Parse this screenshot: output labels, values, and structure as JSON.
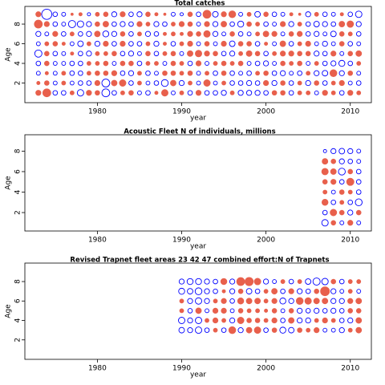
{
  "chart_data": [
    {
      "type": "bubble",
      "title": "Total catches",
      "xlabel": "year",
      "ylabel": "Age",
      "x": [
        1973,
        1974,
        1975,
        1976,
        1977,
        1978,
        1979,
        1980,
        1981,
        1982,
        1983,
        1984,
        1985,
        1986,
        1987,
        1988,
        1989,
        1990,
        1991,
        1992,
        1993,
        1994,
        1995,
        1996,
        1997,
        1998,
        1999,
        2000,
        2001,
        2002,
        2003,
        2004,
        2005,
        2006,
        2007,
        2008,
        2009,
        2010,
        2011
      ],
      "y": [
        1,
        2,
        3,
        4,
        5,
        6,
        7,
        8,
        9
      ],
      "values": [
        [
          0.5,
          1.2,
          -0.4,
          -0.4,
          0.3,
          -0.8,
          0.5,
          0.4,
          -1.2,
          -0.4,
          0.3,
          0.4,
          -0.3,
          -0.4,
          0.2,
          0.8,
          -0.3,
          0.3,
          -0.4,
          0.5,
          -0.4,
          -0.4,
          -0.5,
          0.3,
          -0.5,
          -0.5,
          -0.5,
          -0.4,
          0.4,
          0.4,
          -0.4,
          0.3,
          0.3,
          -0.3,
          0.5,
          0.3,
          -0.4,
          0.5,
          0.3
        ],
        [
          0.2,
          0.4,
          -0.3,
          0.3,
          -0.3,
          -0.4,
          -0.4,
          0.5,
          -1.2,
          0.6,
          0.8,
          -0.4,
          0.3,
          -0.3,
          -0.4,
          -0.9,
          0.6,
          -0.5,
          0.3,
          -0.3,
          0.8,
          -0.3,
          0.3,
          -0.4,
          -0.4,
          -0.5,
          -0.4,
          0.5,
          -0.5,
          0.4,
          -0.4,
          0.3,
          -0.5,
          0.4,
          -0.4,
          0.3,
          0.5,
          -0.3,
          -0.4
        ],
        [
          -0.3,
          0.2,
          -0.3,
          0.3,
          -0.4,
          -0.4,
          0.3,
          0.4,
          0.4,
          0.5,
          -0.4,
          -0.5,
          0.3,
          -0.4,
          -0.3,
          0.4,
          0.4,
          0.3,
          0.4,
          -0.3,
          0.3,
          -0.4,
          0.4,
          -0.4,
          -0.3,
          -0.4,
          0.3,
          0.4,
          -0.4,
          -0.5,
          -0.3,
          -0.4,
          0.3,
          -0.5,
          -0.6,
          0.9,
          -0.5,
          0.4,
          -0.3
        ],
        [
          -0.4,
          0.4,
          -0.3,
          -0.3,
          -0.4,
          -0.4,
          0.3,
          0.3,
          0.4,
          -0.3,
          0.4,
          0.4,
          -0.4,
          0.3,
          0.3,
          -0.3,
          0.4,
          0.3,
          -0.4,
          0.5,
          -0.3,
          0.3,
          0.4,
          0.3,
          0.4,
          -0.3,
          -0.4,
          -0.5,
          -0.3,
          0.4,
          0.3,
          0.4,
          -0.3,
          0.3,
          -0.4,
          -0.5,
          -0.7,
          -0.4,
          0.3
        ],
        [
          -1,
          0.4,
          -0.4,
          -0.3,
          0.2,
          -0.4,
          -0.5,
          0.3,
          0.3,
          0.4,
          -0.4,
          -0.5,
          -0.3,
          0.4,
          -0.4,
          0.3,
          0.4,
          -0.3,
          0.6,
          0.8,
          0.5,
          0.4,
          -0.4,
          -0.5,
          0.3,
          0.6,
          0.4,
          -0.4,
          0.3,
          0.5,
          0.5,
          0.4,
          0.4,
          -0.5,
          -0.4,
          0.5,
          -0.3,
          0.4,
          0.6
        ],
        [
          -0.3,
          0.3,
          0.4,
          0.2,
          -0.3,
          -0.6,
          0.3,
          -0.5,
          0.5,
          -0.4,
          0.5,
          -0.4,
          -0.4,
          0.3,
          -0.5,
          0.2,
          -0.4,
          0.3,
          0.5,
          -0.3,
          0.4,
          -0.3,
          0.5,
          -0.6,
          0.4,
          0.4,
          -0.4,
          0.2,
          -0.3,
          0.6,
          -0.4,
          0.3,
          0.5,
          -0.3,
          -0.5,
          -0.3,
          0.4,
          -0.4,
          -0.3
        ],
        [
          -0.5,
          -0.3,
          0.5,
          -0.4,
          0.3,
          -0.4,
          -0.5,
          0.6,
          -0.7,
          -0.5,
          0.4,
          -0.4,
          0.3,
          -0.5,
          -0.4,
          0.2,
          0.3,
          0.2,
          0.5,
          0.4,
          0.8,
          -0.5,
          -0.3,
          0.4,
          -0.4,
          -0.3,
          0.3,
          0.6,
          0.5,
          -0.3,
          0.4,
          0.5,
          -0.4,
          -0.5,
          -0.3,
          -0.6,
          0.4,
          0.3,
          -0.4
        ],
        [
          1.2,
          0.5,
          -0.4,
          -0.3,
          -1,
          -0.8,
          -0.5,
          0.4,
          0.6,
          -0.4,
          -0.5,
          -0.4,
          0.5,
          0.3,
          -0.5,
          -0.4,
          0.3,
          0.5,
          0.4,
          -0.3,
          0.5,
          -0.5,
          0.6,
          -0.4,
          -0.7,
          0.4,
          0.3,
          -0.4,
          -0.3,
          0.5,
          -0.5,
          0.3,
          -0.4,
          -0.6,
          -0.5,
          -0.4,
          0.6,
          0.8,
          -0.5
        ],
        [
          0.5,
          -2,
          -0.4,
          -0.3,
          0.1,
          0.2,
          -0.2,
          0.3,
          0.4,
          -0.5,
          0.5,
          -0.4,
          -0.5,
          0.4,
          0.2,
          0.1,
          -0.3,
          -0.2,
          0.4,
          -0.4,
          1.2,
          -0.6,
          0.5,
          0.9,
          -0.3,
          0.3,
          -0.6,
          0.4,
          -0.4,
          -0.3,
          0.2,
          0.1,
          -0.5,
          0.3,
          -0.4,
          -0.3,
          0.2,
          -0.4,
          -0.8
        ]
      ],
      "xlim": [
        1971.4,
        2012.5
      ],
      "ylim": [
        0,
        9.8
      ],
      "xticks": [
        1980,
        1990,
        2000,
        2010
      ],
      "yticks": [
        2,
        4,
        6,
        8
      ],
      "pos_color": "#e8604c",
      "neg_color": "#0000ff"
    },
    {
      "type": "bubble",
      "title": "Acoustic Fleet  N of individuals, millions",
      "xlabel": "year",
      "ylabel": "Age",
      "x": [
        2007,
        2008,
        2009,
        2010,
        2011
      ],
      "y": [
        1,
        2,
        3,
        4,
        5,
        6,
        7,
        8
      ],
      "values": [
        [
          -0.8,
          0.4,
          -0.3,
          0.5,
          -0.3
        ],
        [
          -0.4,
          0.8,
          0.4,
          -0.5,
          0.4
        ],
        [
          0.7,
          -0.4,
          0.3,
          -0.4,
          -0.9
        ],
        [
          0.3,
          -0.3,
          0.4,
          0.3,
          -0.4
        ],
        [
          0.4,
          0.5,
          -0.4,
          1,
          -0.4
        ],
        [
          0.8,
          0.6,
          -0.9,
          0.4,
          -0.4
        ],
        [
          0.6,
          0.4,
          -0.5,
          -0.4,
          -0.3
        ],
        [
          -0.2,
          -0.5,
          -0.6,
          -0.5,
          -0.3
        ]
      ],
      "xlim": [
        1971.4,
        2012.5
      ],
      "ylim": [
        0.2,
        9.6
      ],
      "xticks": [
        1980,
        1990,
        2000,
        2010
      ],
      "yticks": [
        2,
        4,
        6,
        8
      ],
      "pos_color": "#e8604c",
      "neg_color": "#0000ff"
    },
    {
      "type": "bubble",
      "title": "Revised Trapnet fleet areas 23 42 47 combined  effort:N of Trapnets",
      "xlabel": "year",
      "ylabel": "Age",
      "x": [
        1990,
        1991,
        1992,
        1993,
        1994,
        1995,
        1996,
        1997,
        1998,
        1999,
        2000,
        2001,
        2002,
        2003,
        2004,
        2005,
        2006,
        2007,
        2008,
        2009,
        2010,
        2011
      ],
      "y": [
        3,
        4,
        5,
        6,
        7,
        8
      ],
      "values": [
        [
          -0.6,
          -0.5,
          -0.8,
          -0.4,
          0.3,
          -0.4,
          0.9,
          -0.5,
          0.6,
          0.8,
          -0.4,
          0.4,
          -0.7,
          -0.6,
          0.4,
          0.3,
          0.5,
          -0.3,
          -0.3,
          -0.5,
          0.3,
          0.6
        ],
        [
          -0.8,
          -0.5,
          -0.8,
          0.3,
          0.5,
          0.3,
          -0.5,
          0.8,
          0.4,
          0.4,
          0.3,
          0.5,
          -0.4,
          0.6,
          -0.5,
          -0.5,
          0.3,
          0.5,
          0.3,
          -0.4,
          -0.5,
          0.6
        ],
        [
          0.3,
          -0.4,
          0.6,
          -0.3,
          0.5,
          0.5,
          -0.3,
          0.4,
          0.3,
          0.3,
          0.2,
          0.4,
          -0.3,
          0.4,
          -0.5,
          -0.4,
          -0.5,
          -0.4,
          -0.5,
          -0.4,
          0.4,
          0.4
        ],
        [
          0.3,
          -0.5,
          -0.8,
          -0.5,
          0.3,
          0.5,
          -0.4,
          0.7,
          0.6,
          0.6,
          0.3,
          0.5,
          -0.7,
          -0.5,
          0.9,
          0.8,
          0.6,
          0.6,
          -0.5,
          -0.5,
          0.5,
          0.6
        ],
        [
          -0.7,
          -0.6,
          -0.9,
          -0.5,
          -0.4,
          0.2,
          -0.5,
          0.4,
          -0.6,
          -0.4,
          0.3,
          0.6,
          -0.4,
          0.5,
          -0.5,
          -0.4,
          0.4,
          1.5,
          -0.5,
          -0.3,
          0.3,
          -0.3
        ],
        [
          -0.5,
          -0.7,
          -0.7,
          -0.5,
          -0.4,
          0.7,
          -0.5,
          1.2,
          1.3,
          0.8,
          -0.5,
          -0.3,
          0.3,
          -0.4,
          0.3,
          -0.6,
          -1,
          -0.8,
          0.4,
          -0.4,
          0.3,
          0.3
        ]
      ],
      "xlim": [
        1971.4,
        2012.5
      ],
      "ylim": [
        0,
        9.9
      ],
      "xticks": [
        1980,
        1990,
        2000,
        2010
      ],
      "yticks": [
        2,
        4,
        6,
        8
      ],
      "pos_color": "#e8604c",
      "neg_color": "#0000ff"
    }
  ]
}
